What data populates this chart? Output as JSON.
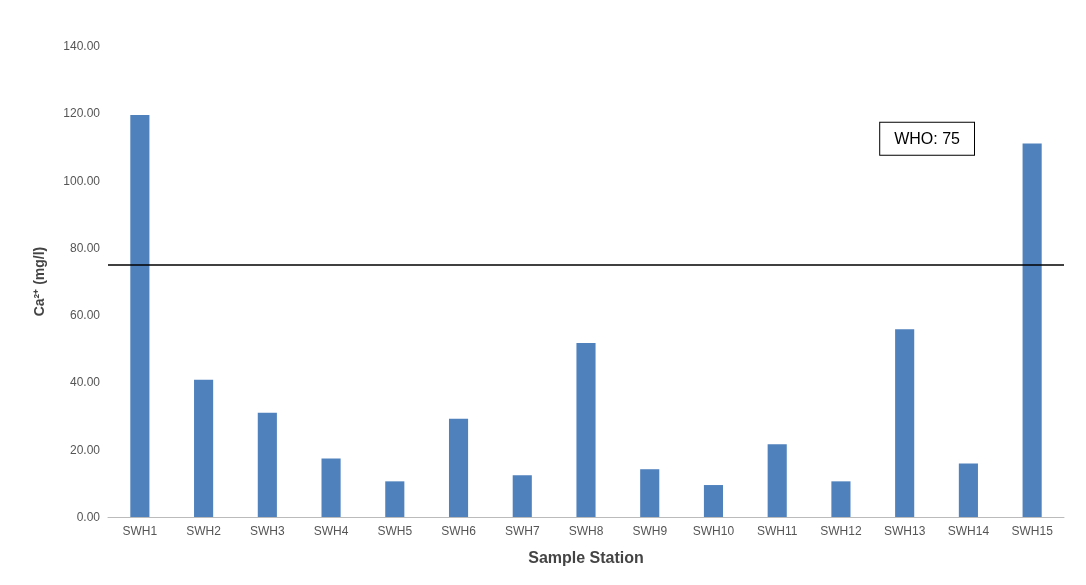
{
  "chart_data": {
    "type": "bar",
    "xlabel": "Sample Station",
    "ylabel": "Ca²⁺ (mg/l)",
    "categories": [
      "SWH1",
      "SWH2",
      "SWH3",
      "SWH4",
      "SWH5",
      "SWH6",
      "SWH7",
      "SWH8",
      "SWH9",
      "SWH10",
      "SWH11",
      "SWH12",
      "SWH13",
      "SWH14",
      "SWH15"
    ],
    "values": [
      119.5,
      40.8,
      31.0,
      17.4,
      10.6,
      29.2,
      12.4,
      51.7,
      14.2,
      9.5,
      21.6,
      10.6,
      55.8,
      15.9,
      111.0
    ],
    "color": "#4f81bd",
    "ylim": [
      0,
      140
    ],
    "yticks": [
      {
        "value": 0,
        "label": "0.00"
      },
      {
        "value": 20,
        "label": "20.00"
      },
      {
        "value": 40,
        "label": "40.00"
      },
      {
        "value": 60,
        "label": "60.00"
      },
      {
        "value": 80,
        "label": "80.00"
      },
      {
        "value": 100,
        "label": "100.00"
      },
      {
        "value": 120,
        "label": "120.00"
      },
      {
        "value": 140,
        "label": "140.00"
      }
    ],
    "ref_lines": [
      {
        "axis": "y",
        "value": 75,
        "label": "WHO: 75",
        "color": "#000000"
      }
    ],
    "grid": false
  }
}
